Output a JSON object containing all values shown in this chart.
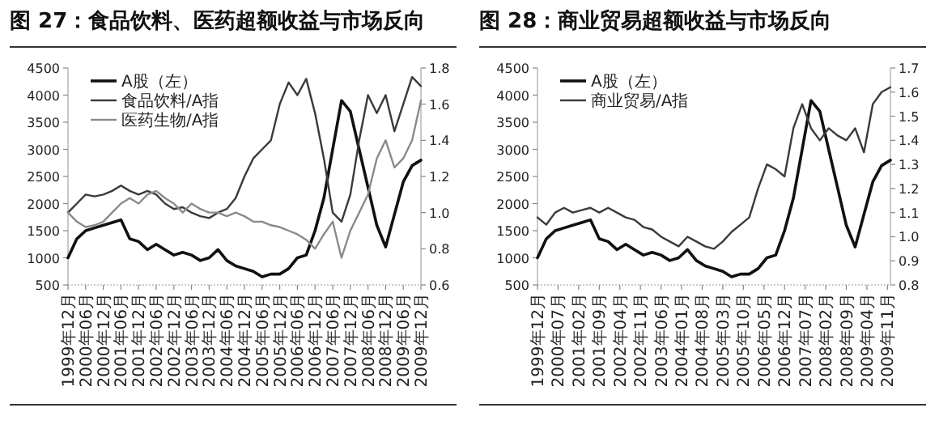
{
  "chart_data": [
    {
      "type": "line",
      "title": "图 27：食品饮料、医药超额收益与市场反向",
      "legend": "top left",
      "grid": false,
      "xlim": [
        "1999-12",
        "2009-12"
      ],
      "xticks": [
        {
          "value": "1999-12",
          "label": "1999年12月"
        },
        {
          "value": "2000-06",
          "label": "2000年06月"
        },
        {
          "value": "2000-12",
          "label": "2000年12月"
        },
        {
          "value": "2001-06",
          "label": "2001年06月"
        },
        {
          "value": "2001-12",
          "label": "2001年12月"
        },
        {
          "value": "2002-06",
          "label": "2002年06月"
        },
        {
          "value": "2002-12",
          "label": "2002年12月"
        },
        {
          "value": "2003-06",
          "label": "2003年06月"
        },
        {
          "value": "2003-12",
          "label": "2003年12月"
        },
        {
          "value": "2004-06",
          "label": "2004年06月"
        },
        {
          "value": "2004-12",
          "label": "2004年12月"
        },
        {
          "value": "2005-06",
          "label": "2005年06月"
        },
        {
          "value": "2005-12",
          "label": "2005年12月"
        },
        {
          "value": "2006-06",
          "label": "2006年06月"
        },
        {
          "value": "2006-12",
          "label": "2006年12月"
        },
        {
          "value": "2007-06",
          "label": "2007年06月"
        },
        {
          "value": "2007-12",
          "label": "2007年12月"
        },
        {
          "value": "2008-06",
          "label": "2008年06月"
        },
        {
          "value": "2008-12",
          "label": "2008年12月"
        },
        {
          "value": "2009-06",
          "label": "2009年06月"
        },
        {
          "value": "2009-12",
          "label": "2009年12月"
        }
      ],
      "ylim": [
        500,
        4500
      ],
      "yticks": [
        500,
        1000,
        1500,
        2000,
        2500,
        3000,
        3500,
        4000,
        4500
      ],
      "y2lim": [
        0.6,
        1.8
      ],
      "y2ticks": [
        0.6,
        0.8,
        {
          "value": 1,
          "label": "1.0"
        },
        1.2,
        1.4,
        1.6,
        1.8
      ],
      "x": [
        "1999-12",
        "2000-03",
        "2000-06",
        "2000-09",
        "2000-12",
        "2001-03",
        "2001-06",
        "2001-09",
        "2001-12",
        "2002-03",
        "2002-06",
        "2002-09",
        "2002-12",
        "2003-03",
        "2003-06",
        "2003-09",
        "2003-12",
        "2004-03",
        "2004-06",
        "2004-09",
        "2004-12",
        "2005-03",
        "2005-06",
        "2005-09",
        "2005-12",
        "2006-03",
        "2006-06",
        "2006-09",
        "2006-12",
        "2007-03",
        "2007-06",
        "2007-09",
        "2007-12",
        "2008-03",
        "2008-06",
        "2008-09",
        "2008-12",
        "2009-03",
        "2009-06",
        "2009-09",
        "2009-12"
      ],
      "series": [
        {
          "name": "A股（左）",
          "color": "#111111",
          "values": [
            1000,
            1350,
            1500,
            1550,
            1600,
            1650,
            1700,
            1350,
            1300,
            1150,
            1250,
            1150,
            1050,
            1100,
            1050,
            950,
            1000,
            1150,
            950,
            850,
            800,
            750,
            650,
            700,
            700,
            800,
            1000,
            1050,
            1500,
            2100,
            3000,
            3900,
            3700,
            3000,
            2300,
            1600,
            1200,
            1800,
            2400,
            2700,
            2800
          ]
        },
        {
          "name": "食品饮料/A指",
          "color": "#3a3a3a",
          "axis": "y2",
          "values": [
            1.0,
            1.05,
            1.1,
            1.09,
            1.1,
            1.12,
            1.15,
            1.12,
            1.1,
            1.12,
            1.1,
            1.05,
            1.02,
            1.03,
            1.0,
            0.98,
            0.97,
            1.0,
            1.02,
            1.08,
            1.2,
            1.3,
            1.35,
            1.4,
            1.6,
            1.72,
            1.65,
            1.74,
            1.55,
            1.3,
            1.0,
            0.95,
            1.1,
            1.4,
            1.65,
            1.55,
            1.65,
            1.45,
            1.6,
            1.75,
            1.7
          ]
        },
        {
          "name": "医药生物/A指",
          "color": "#8a8a8a",
          "axis": "y2",
          "values": [
            1.0,
            0.95,
            0.92,
            0.93,
            0.95,
            1.0,
            1.05,
            1.08,
            1.05,
            1.1,
            1.12,
            1.08,
            1.05,
            1.0,
            1.05,
            1.02,
            1.0,
            1.0,
            0.98,
            1.0,
            0.98,
            0.95,
            0.95,
            0.93,
            0.92,
            0.9,
            0.88,
            0.85,
            0.8,
            0.88,
            0.95,
            0.75,
            0.9,
            1.0,
            1.1,
            1.3,
            1.4,
            1.25,
            1.3,
            1.4,
            1.62
          ]
        }
      ]
    },
    {
      "type": "line",
      "title": "图 28：商业贸易超额收益与市场反向",
      "legend": "top left",
      "grid": false,
      "xlim": [
        "1999-12",
        "2009-12"
      ],
      "xticks": [
        {
          "value": "1999-12",
          "label": "1999年12月"
        },
        {
          "value": "2000-07",
          "label": "2000年07月"
        },
        {
          "value": "2001-02",
          "label": "2001年02月"
        },
        {
          "value": "2001-09",
          "label": "2001年09月"
        },
        {
          "value": "2002-04",
          "label": "2002年04月"
        },
        {
          "value": "2002-11",
          "label": "2002年11月"
        },
        {
          "value": "2003-06",
          "label": "2003年06月"
        },
        {
          "value": "2004-01",
          "label": "2004年01月"
        },
        {
          "value": "2004-08",
          "label": "2004年08月"
        },
        {
          "value": "2005-03",
          "label": "2005年03月"
        },
        {
          "value": "2005-10",
          "label": "2005年10月"
        },
        {
          "value": "2006-05",
          "label": "2006年05月"
        },
        {
          "value": "2006-12",
          "label": "2006年12月"
        },
        {
          "value": "2007-07",
          "label": "2007年07月"
        },
        {
          "value": "2008-02",
          "label": "2008年02月"
        },
        {
          "value": "2008-09",
          "label": "2008年09月"
        },
        {
          "value": "2009-04",
          "label": "2009年04月"
        },
        {
          "value": "2009-11",
          "label": "2009年11月"
        }
      ],
      "ylim": [
        500,
        4500
      ],
      "yticks": [
        500,
        1000,
        1500,
        2000,
        2500,
        3000,
        3500,
        4000,
        4500
      ],
      "y2lim": [
        0.8,
        1.7
      ],
      "y2ticks": [
        0.8,
        0.9,
        {
          "value": 1,
          "label": "1.0"
        },
        1.1,
        1.2,
        1.3,
        1.4,
        1.5,
        1.6,
        1.7
      ],
      "x": [
        "1999-12",
        "2000-03",
        "2000-06",
        "2000-09",
        "2000-12",
        "2001-03",
        "2001-06",
        "2001-09",
        "2001-12",
        "2002-03",
        "2002-06",
        "2002-09",
        "2002-12",
        "2003-03",
        "2003-06",
        "2003-09",
        "2003-12",
        "2004-03",
        "2004-06",
        "2004-09",
        "2004-12",
        "2005-03",
        "2005-06",
        "2005-09",
        "2005-12",
        "2006-03",
        "2006-06",
        "2006-09",
        "2006-12",
        "2007-03",
        "2007-06",
        "2007-09",
        "2007-12",
        "2008-03",
        "2008-06",
        "2008-09",
        "2008-12",
        "2009-03",
        "2009-06",
        "2009-09",
        "2009-12"
      ],
      "series": [
        {
          "name": "A股（左）",
          "color": "#111111",
          "values": [
            1000,
            1350,
            1500,
            1550,
            1600,
            1650,
            1700,
            1350,
            1300,
            1150,
            1250,
            1150,
            1050,
            1100,
            1050,
            950,
            1000,
            1150,
            950,
            850,
            800,
            750,
            650,
            700,
            700,
            800,
            1000,
            1050,
            1500,
            2100,
            3000,
            3900,
            3700,
            3000,
            2300,
            1600,
            1200,
            1800,
            2400,
            2700,
            2800
          ]
        },
        {
          "name": "商业贸易/A指",
          "color": "#3a3a3a",
          "axis": "y2",
          "values": [
            1.08,
            1.05,
            1.1,
            1.12,
            1.1,
            1.11,
            1.12,
            1.1,
            1.12,
            1.1,
            1.08,
            1.07,
            1.04,
            1.03,
            1.0,
            0.98,
            0.96,
            1.0,
            0.98,
            0.96,
            0.95,
            0.98,
            1.02,
            1.05,
            1.08,
            1.2,
            1.3,
            1.28,
            1.25,
            1.45,
            1.55,
            1.45,
            1.4,
            1.45,
            1.42,
            1.4,
            1.45,
            1.35,
            1.55,
            1.6,
            1.62
          ]
        }
      ]
    }
  ]
}
